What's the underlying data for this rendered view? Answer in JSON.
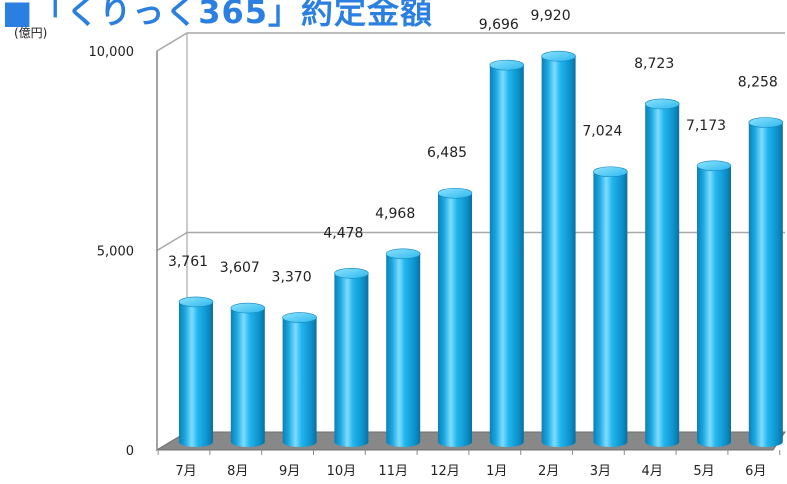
{
  "title": "■「くりっく365」約定金額",
  "unit": "(億円)",
  "colors": {
    "bar": "#17b2ec",
    "floor": "#888888",
    "gridline": "#a8a8a8"
  },
  "chart_data": {
    "type": "bar",
    "categories": [
      "7月",
      "8月",
      "9月",
      "10月",
      "11月",
      "12月",
      "1月",
      "2月",
      "3月",
      "4月",
      "5月",
      "6月"
    ],
    "values": [
      3761,
      3607,
      3370,
      4478,
      4968,
      6485,
      9696,
      9920,
      7024,
      8723,
      7173,
      8258
    ],
    "data_labels": [
      "3,761",
      "3,607",
      "3,370",
      "4,478",
      "4,968",
      "6,485",
      "9,696",
      "9,920",
      "7,024",
      "8,723",
      "7,173",
      "8,258"
    ],
    "y_ticks": [
      {
        "value": 0,
        "label": "0"
      },
      {
        "value": 5000,
        "label": "5,000"
      },
      {
        "value": 10000,
        "label": "10,000"
      }
    ],
    "ylim": [
      0,
      10000
    ],
    "grid": true,
    "legend": "none",
    "style": "3d-cylinder"
  }
}
